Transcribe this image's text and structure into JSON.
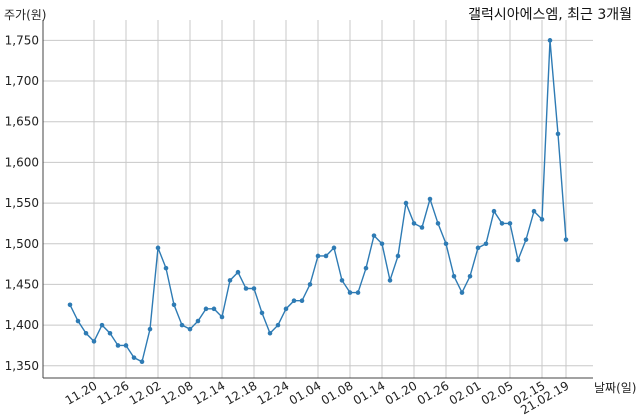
{
  "chart_data": {
    "type": "line",
    "title": "갤럭시아에스엠, 최근 3개월",
    "xlabel": "날짜(일)",
    "ylabel": "주가(원)",
    "ylim": [
      1335,
      1775
    ],
    "yticks": [
      1350,
      1400,
      1450,
      1500,
      1550,
      1600,
      1650,
      1700,
      1750
    ],
    "ytick_labels": [
      "1,350",
      "1,400",
      "1,450",
      "1,500",
      "1,550",
      "1,600",
      "1,650",
      "1,700",
      "1,750"
    ],
    "xticks": [
      {
        "index": 3,
        "label": "11.20"
      },
      {
        "index": 7,
        "label": "11.26"
      },
      {
        "index": 11,
        "label": "12.02"
      },
      {
        "index": 15,
        "label": "12.08"
      },
      {
        "index": 19,
        "label": "12.14"
      },
      {
        "index": 23,
        "label": "12.18"
      },
      {
        "index": 27,
        "label": "12.24"
      },
      {
        "index": 31,
        "label": "01.04"
      },
      {
        "index": 35,
        "label": "01.08"
      },
      {
        "index": 39,
        "label": "01.14"
      },
      {
        "index": 43,
        "label": "01.20"
      },
      {
        "index": 47,
        "label": "01.26"
      },
      {
        "index": 51,
        "label": "02.01"
      },
      {
        "index": 55,
        "label": "02.05"
      },
      {
        "index": 59,
        "label": "02.15"
      },
      {
        "index": 62,
        "label": "21.02.19"
      }
    ],
    "grid": true,
    "series": [
      {
        "color": "#2e7bb4",
        "values": [
          1425,
          1405,
          1390,
          1380,
          1400,
          1390,
          1375,
          1375,
          1360,
          1355,
          1395,
          1495,
          1470,
          1425,
          1400,
          1395,
          1405,
          1420,
          1420,
          1410,
          1455,
          1465,
          1445,
          1445,
          1415,
          1390,
          1400,
          1420,
          1430,
          1430,
          1450,
          1485,
          1485,
          1495,
          1455,
          1440,
          1440,
          1470,
          1510,
          1500,
          1455,
          1485,
          1550,
          1525,
          1520,
          1555,
          1525,
          1500,
          1460,
          1440,
          1460,
          1495,
          1500,
          1540,
          1525,
          1525,
          1480,
          1505,
          1540,
          1530,
          1750,
          1635,
          1505
        ]
      }
    ]
  }
}
